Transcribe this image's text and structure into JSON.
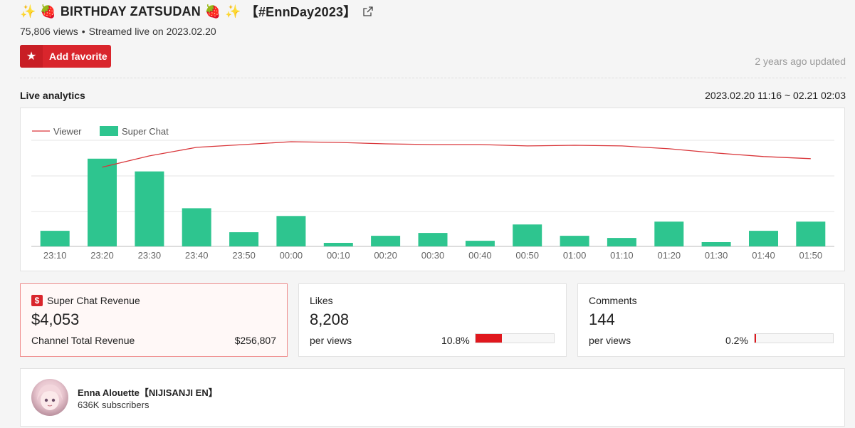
{
  "video": {
    "title": "BIRTHDAY ZATSUDAN",
    "title_tag": "【#EnnDay2023】",
    "views": "75,806 views",
    "separator": "•",
    "streamed": "Streamed live on 2023.02.20",
    "favorite_label": "Add favorite",
    "updated": "2 years ago updated"
  },
  "analytics": {
    "title": "Live analytics",
    "range": "2023.02.20 11:16 ~ 02.21 02:03"
  },
  "chart_data": {
    "type": "bar",
    "legend": [
      "Viewer",
      "Super Chat"
    ],
    "legend_placement": "top-left",
    "grid": true,
    "categories": [
      "23:10",
      "23:20",
      "23:30",
      "23:40",
      "23:50",
      "00:00",
      "00:10",
      "00:20",
      "00:30",
      "00:40",
      "00:50",
      "01:00",
      "01:10",
      "01:20",
      "01:30",
      "01:40",
      "01:50"
    ],
    "series": [
      {
        "name": "Super Chat",
        "type": "bar",
        "values": [
          22,
          124,
          106,
          54,
          20,
          43,
          5,
          15,
          19,
          8,
          31,
          15,
          12,
          35,
          6,
          22,
          35
        ]
      },
      {
        "name": "Viewer",
        "type": "line",
        "values": [
          null,
          112,
          128,
          140,
          144,
          148,
          147,
          145,
          144,
          144,
          142,
          143,
          142,
          138,
          132,
          127,
          124
        ]
      }
    ],
    "ylim": [
      0,
      150
    ],
    "colors": {
      "bar": "#2ec58f",
      "line": "#d9363a"
    }
  },
  "cards": {
    "superchat": {
      "label": "Super Chat Revenue",
      "value": "$4,053",
      "sub_label": "Channel Total Revenue",
      "sub_value": "$256,807"
    },
    "likes": {
      "label": "Likes",
      "value": "8,208",
      "sub_label": "per views",
      "percent": "10.8%",
      "fraction": 0.34
    },
    "comments": {
      "label": "Comments",
      "value": "144",
      "sub_label": "per views",
      "percent": "0.2%",
      "fraction": 0.02
    }
  },
  "channel": {
    "name": "Enna Alouette【NIJISANJI EN】",
    "subscribers": "636K subscribers"
  }
}
